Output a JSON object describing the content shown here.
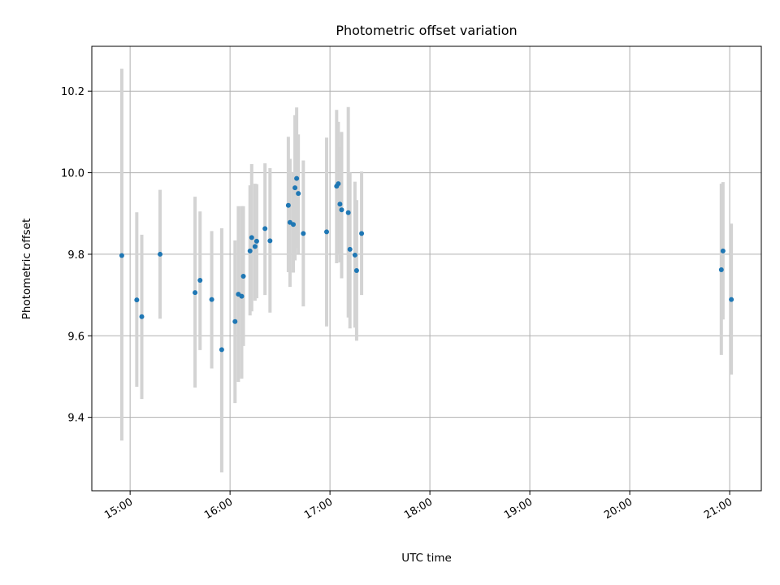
{
  "chart_data": {
    "type": "scatter",
    "title": "Photometric offset variation",
    "xlabel": "UTC time",
    "ylabel": "Photometric offset",
    "xlim": [
      "14:37",
      "21:19"
    ],
    "ylim": [
      9.22,
      10.31
    ],
    "x_ticks": [
      "15:00",
      "16:00",
      "17:00",
      "18:00",
      "19:00",
      "20:00",
      "21:00"
    ],
    "y_ticks": [
      9.4,
      9.6,
      9.8,
      10.0,
      10.2
    ],
    "y_tick_labels": [
      "9.4",
      "9.6",
      "9.8",
      "10.0",
      "10.2"
    ],
    "grid": true,
    "point_color": "#1f77b4",
    "errorbar_color": "#d3d3d3",
    "points": [
      {
        "t": "14:55",
        "y": 9.797,
        "lo": 9.343,
        "hi": 10.255
      },
      {
        "t": "15:04",
        "y": 9.688,
        "lo": 9.475,
        "hi": 9.903
      },
      {
        "t": "15:07",
        "y": 9.647,
        "lo": 9.445,
        "hi": 9.848
      },
      {
        "t": "15:18",
        "y": 9.8,
        "lo": 9.642,
        "hi": 9.958
      },
      {
        "t": "15:39",
        "y": 9.706,
        "lo": 9.473,
        "hi": 9.941
      },
      {
        "t": "15:42",
        "y": 9.736,
        "lo": 9.565,
        "hi": 9.905
      },
      {
        "t": "15:49",
        "y": 9.689,
        "lo": 9.52,
        "hi": 9.857
      },
      {
        "t": "15:55",
        "y": 9.566,
        "lo": 9.265,
        "hi": 9.864
      },
      {
        "t": "16:03",
        "y": 9.635,
        "lo": 9.435,
        "hi": 9.834
      },
      {
        "t": "16:05",
        "y": 9.702,
        "lo": 9.487,
        "hi": 9.918
      },
      {
        "t": "16:07",
        "y": 9.697,
        "lo": 9.495,
        "hi": 9.918
      },
      {
        "t": "16:08",
        "y": 9.746,
        "lo": 9.575,
        "hi": 9.918
      },
      {
        "t": "16:12",
        "y": 9.808,
        "lo": 9.65,
        "hi": 9.969
      },
      {
        "t": "16:13",
        "y": 9.841,
        "lo": 9.66,
        "hi": 10.021
      },
      {
        "t": "16:15",
        "y": 9.819,
        "lo": 9.686,
        "hi": 9.973
      },
      {
        "t": "16:16",
        "y": 9.832,
        "lo": 9.692,
        "hi": 9.972
      },
      {
        "t": "16:21",
        "y": 9.863,
        "lo": 9.7,
        "hi": 10.023
      },
      {
        "t": "16:24",
        "y": 9.833,
        "lo": 9.657,
        "hi": 10.011
      },
      {
        "t": "16:35",
        "y": 9.92,
        "lo": 9.756,
        "hi": 10.088
      },
      {
        "t": "16:36",
        "y": 9.878,
        "lo": 9.72,
        "hi": 10.034
      },
      {
        "t": "16:38",
        "y": 9.873,
        "lo": 9.755,
        "hi": 10.0
      },
      {
        "t": "16:39",
        "y": 9.963,
        "lo": 9.785,
        "hi": 10.141
      },
      {
        "t": "16:40",
        "y": 9.986,
        "lo": 9.815,
        "hi": 10.16
      },
      {
        "t": "16:41",
        "y": 9.949,
        "lo": 9.8,
        "hi": 10.094
      },
      {
        "t": "16:44",
        "y": 9.851,
        "lo": 9.672,
        "hi": 10.03
      },
      {
        "t": "16:58",
        "y": 9.855,
        "lo": 9.623,
        "hi": 10.086
      },
      {
        "t": "17:04",
        "y": 9.967,
        "lo": 9.778,
        "hi": 10.154
      },
      {
        "t": "17:05",
        "y": 9.973,
        "lo": 9.8,
        "hi": 10.125
      },
      {
        "t": "17:06",
        "y": 9.923,
        "lo": 9.78,
        "hi": 10.063
      },
      {
        "t": "17:07",
        "y": 9.909,
        "lo": 9.741,
        "hi": 10.1
      },
      {
        "t": "17:11",
        "y": 9.902,
        "lo": 9.645,
        "hi": 10.161
      },
      {
        "t": "17:12",
        "y": 9.812,
        "lo": 9.618,
        "hi": 10.0
      },
      {
        "t": "17:15",
        "y": 9.798,
        "lo": 9.62,
        "hi": 9.978
      },
      {
        "t": "17:16",
        "y": 9.76,
        "lo": 9.588,
        "hi": 9.933
      },
      {
        "t": "17:19",
        "y": 9.851,
        "lo": 9.7,
        "hi": 10.003
      },
      {
        "t": "20:55",
        "y": 9.762,
        "lo": 9.553,
        "hi": 9.973
      },
      {
        "t": "20:56",
        "y": 9.808,
        "lo": 9.64,
        "hi": 9.977
      },
      {
        "t": "21:01",
        "y": 9.689,
        "lo": 9.505,
        "hi": 9.875
      }
    ]
  }
}
